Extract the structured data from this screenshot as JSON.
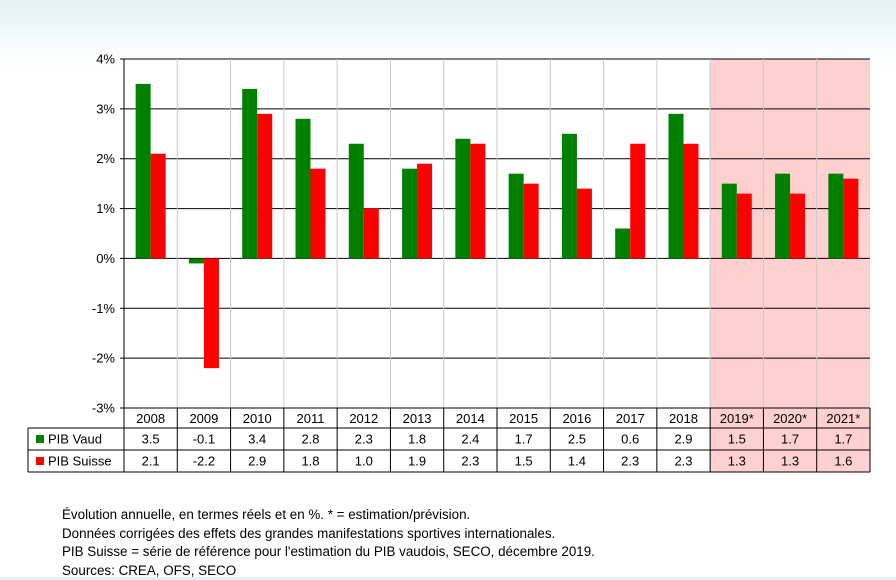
{
  "chart_data": {
    "type": "bar",
    "categories": [
      "2008",
      "2009",
      "2010",
      "2011",
      "2012",
      "2013",
      "2014",
      "2015",
      "2016",
      "2017",
      "2018",
      "2019*",
      "2020*",
      "2021*"
    ],
    "series": [
      {
        "name": "PIB Vaud",
        "color": "#008000",
        "values": [
          3.5,
          -0.1,
          3.4,
          2.8,
          2.3,
          1.8,
          2.4,
          1.7,
          2.5,
          0.6,
          2.9,
          1.5,
          1.7,
          1.7
        ],
        "table_values": [
          "3.5",
          "-0.1",
          "3.4",
          "2.8",
          "2.3",
          "1.8",
          "2.4",
          "1.7",
          "2.5",
          "0.6",
          "2.9",
          "1.5",
          "1.7",
          "1.7"
        ]
      },
      {
        "name": "PIB Suisse",
        "color": "#ff0000",
        "values": [
          2.1,
          -2.2,
          2.9,
          1.8,
          1.0,
          1.9,
          2.3,
          1.5,
          1.4,
          2.3,
          2.3,
          1.3,
          1.3,
          1.6
        ],
        "table_values": [
          "2.1",
          "-2.2",
          "2.9",
          "1.8",
          "1.0",
          "1.9",
          "2.3",
          "1.5",
          "1.4",
          "2.3",
          "2.3",
          "1.3",
          "1.3",
          "1.6"
        ]
      }
    ],
    "ylim": [
      -3,
      4
    ],
    "yticks": [
      4,
      3,
      2,
      1,
      0,
      -1,
      -2,
      -3
    ],
    "ytick_labels": [
      "4%",
      "3%",
      "2%",
      "1%",
      "0%",
      "-1%",
      "-2%",
      "-3%"
    ],
    "forecast_categories": [
      "2019*",
      "2020*",
      "2021*"
    ],
    "forecast_shading_color": "#ffd0d0",
    "grid": true,
    "legend": "data-table"
  },
  "notes": [
    "Évolution annuelle, en termes réels et en %. * = estimation/prévision.",
    "Données corrigées des effets des grandes manifestations sportives internationales.",
    "PIB Suisse = série de référence pour l'estimation du PIB vaudois, SECO, décembre 2019.",
    "Sources: CREA, OFS, SECO"
  ]
}
